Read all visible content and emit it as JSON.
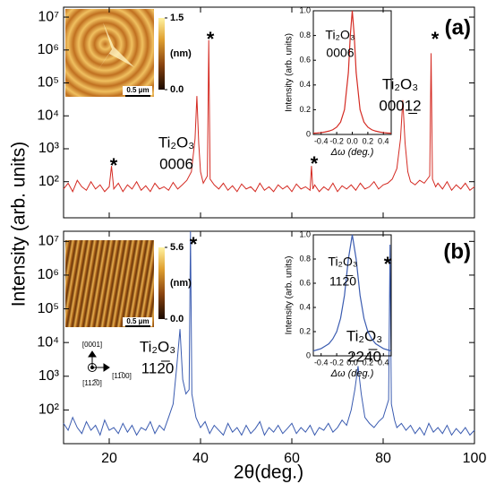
{
  "chart_data": [
    {
      "type": "line",
      "log_y": true,
      "color": "#d42a22",
      "panel_label": "(a)",
      "ylabel": "Intensity (arb. units)",
      "xlim": [
        10,
        100
      ],
      "xticks": [
        20,
        40,
        60,
        80,
        100
      ],
      "ylim": [
        8,
        20000000
      ],
      "yticks": [
        {
          "value": 100,
          "label": "10²"
        },
        {
          "value": 1000,
          "label": "10³"
        },
        {
          "value": 10000,
          "label": "10⁴"
        },
        {
          "value": 100000,
          "label": "10⁵"
        },
        {
          "value": 1000000,
          "label": "10⁶"
        },
        {
          "value": 10000000,
          "label": "10⁷"
        }
      ],
      "x": [
        10,
        11,
        12,
        13,
        14,
        15,
        16,
        17,
        18,
        19,
        20,
        20.5,
        21,
        22,
        23,
        24,
        25,
        26,
        27,
        28,
        29,
        30,
        31,
        32,
        33,
        34,
        35,
        36,
        37,
        38,
        38.8,
        39.2,
        39.6,
        40,
        40.6,
        41.5,
        41.8,
        42.1,
        43,
        44,
        45,
        46,
        47,
        48,
        49,
        50,
        51,
        52,
        53,
        54,
        55,
        56,
        57,
        58,
        59,
        60,
        61,
        62,
        63,
        64,
        64.3,
        64.6,
        65,
        66,
        67,
        68,
        69,
        70,
        71,
        72,
        73,
        74,
        75,
        76,
        77,
        78,
        79,
        80,
        81,
        82,
        83,
        83.8,
        84.3,
        84.8,
        85.4,
        86,
        87,
        88,
        89,
        90.2,
        90.5,
        90.8,
        91.5,
        92,
        93,
        94,
        95,
        96,
        97,
        98,
        99,
        100
      ],
      "values": [
        60,
        90,
        50,
        110,
        70,
        55,
        100,
        60,
        80,
        50,
        70,
        300,
        60,
        90,
        50,
        80,
        60,
        100,
        55,
        75,
        50,
        90,
        60,
        70,
        55,
        95,
        60,
        80,
        110,
        200,
        2000,
        40000,
        1500,
        200,
        90,
        150,
        2000000,
        120,
        80,
        60,
        90,
        55,
        75,
        50,
        85,
        60,
        70,
        50,
        90,
        55,
        70,
        50,
        80,
        60,
        75,
        50,
        85,
        60,
        70,
        55,
        300,
        60,
        80,
        50,
        70,
        55,
        90,
        50,
        75,
        60,
        80,
        55,
        90,
        60,
        70,
        100,
        60,
        80,
        90,
        120,
        250,
        2000,
        30000,
        1500,
        200,
        100,
        80,
        110,
        90,
        150,
        800000,
        120,
        70,
        90,
        60,
        100,
        55,
        80,
        60,
        90,
        55,
        70
      ],
      "annotations": [
        "*",
        "*",
        "*",
        "*",
        "Ti₂O₃",
        "0006",
        "Ti₂O₃",
        "0001̲2"
      ]
    },
    {
      "type": "line",
      "color": "#d42a22",
      "ylabel": "Intensity (arb. units)",
      "xlabel": "Δω (deg.)",
      "xlim": [
        -0.5,
        0.5
      ],
      "xticks": [
        -0.4,
        -0.2,
        {
          "value": 0,
          "label": "0.0"
        },
        0.2,
        0.4
      ],
      "ylim": [
        0,
        1
      ],
      "yticks": [
        0,
        0.2,
        0.4,
        0.6,
        0.8,
        {
          "value": 1,
          "label": "1.0"
        }
      ],
      "x": [
        -0.5,
        -0.45,
        -0.4,
        -0.35,
        -0.3,
        -0.25,
        -0.2,
        -0.15,
        -0.1,
        -0.05,
        -0.025,
        0,
        0.025,
        0.05,
        0.1,
        0.15,
        0.2,
        0.25,
        0.3,
        0.35,
        0.4,
        0.45,
        0.5
      ],
      "values": [
        0.01,
        0.012,
        0.015,
        0.02,
        0.027,
        0.038,
        0.059,
        0.1,
        0.2,
        0.5,
        0.8,
        1,
        0.8,
        0.5,
        0.2,
        0.1,
        0.059,
        0.038,
        0.027,
        0.02,
        0.015,
        0.012,
        0.01
      ],
      "annotations": [
        "Ti₂O₃",
        "0006"
      ]
    },
    {
      "type": "line",
      "log_y": true,
      "color": "#3a5bb0",
      "panel_label": "(b)",
      "xlabel": "2θ(deg.)",
      "xlim": [
        10,
        100
      ],
      "xticks": [
        20,
        40,
        60,
        80,
        100
      ],
      "ylim": [
        10,
        20000000
      ],
      "yticks": [
        {
          "value": 100,
          "label": "10²"
        },
        {
          "value": 1000,
          "label": "10³"
        },
        {
          "value": 10000,
          "label": "10⁴"
        },
        {
          "value": 100000,
          "label": "10⁵"
        },
        {
          "value": 1000000,
          "label": "10⁶"
        },
        {
          "value": 10000000,
          "label": "10⁷"
        }
      ],
      "x": [
        10,
        11,
        12,
        13,
        14,
        15,
        16,
        17,
        18,
        19,
        20,
        21,
        22,
        23,
        24,
        25,
        26,
        27,
        28,
        29,
        30,
        31,
        32,
        33,
        34,
        34.8,
        35.5,
        36.1,
        36.8,
        37.5,
        37.8,
        38.1,
        39,
        40,
        41,
        42,
        43,
        44,
        45,
        46,
        47,
        48,
        49,
        50,
        51,
        52,
        53,
        54,
        55,
        56,
        57,
        58,
        59,
        60,
        61,
        62,
        63,
        64,
        65,
        66,
        67,
        68,
        69,
        70,
        71,
        72,
        73,
        73.8,
        74.5,
        75.2,
        76,
        77,
        78,
        79,
        80,
        81.2,
        81.5,
        81.8,
        82.5,
        83,
        84,
        85,
        86,
        87,
        88,
        89,
        90,
        91,
        92,
        93,
        94,
        95,
        96,
        97,
        98,
        99,
        100
      ],
      "values": [
        40,
        25,
        60,
        30,
        20,
        45,
        25,
        35,
        18,
        50,
        25,
        30,
        20,
        40,
        22,
        35,
        18,
        30,
        25,
        45,
        20,
        35,
        25,
        60,
        150,
        2000,
        25000,
        800,
        300,
        400,
        20000000,
        300,
        60,
        30,
        45,
        20,
        35,
        25,
        18,
        40,
        22,
        30,
        18,
        35,
        20,
        28,
        45,
        18,
        30,
        22,
        35,
        20,
        28,
        40,
        20,
        30,
        22,
        35,
        18,
        30,
        25,
        40,
        22,
        30,
        50,
        35,
        100,
        400,
        2000,
        300,
        60,
        40,
        30,
        45,
        60,
        200,
        8000000,
        150,
        50,
        30,
        40,
        25,
        35,
        20,
        30,
        18,
        40,
        22,
        30,
        20,
        35,
        18,
        28,
        20,
        30,
        18,
        25
      ],
      "annotations": [
        "*",
        "*",
        "Ti₂O₃",
        "112̅0",
        "Ti₂O₃",
        "224̅0"
      ]
    },
    {
      "type": "line",
      "color": "#3a5bb0",
      "ylabel": "Intensity (arb. units)",
      "xlabel": "Δω (deg.)",
      "xlim": [
        -0.5,
        0.5
      ],
      "xticks": [
        -0.4,
        -0.2,
        {
          "value": 0,
          "label": "0.0"
        },
        0.2,
        0.4
      ],
      "ylim": [
        0,
        1
      ],
      "yticks": [
        0,
        0.2,
        0.4,
        0.6,
        0.8,
        {
          "value": 1,
          "label": "1.0"
        }
      ],
      "x": [
        -0.5,
        -0.45,
        -0.4,
        -0.35,
        -0.3,
        -0.25,
        -0.2,
        -0.15,
        -0.1,
        -0.05,
        0,
        0.05,
        0.1,
        0.15,
        0.2,
        0.25,
        0.3,
        0.35,
        0.4,
        0.45,
        0.5
      ],
      "values": [
        0.04,
        0.05,
        0.06,
        0.08,
        0.1,
        0.14,
        0.2,
        0.31,
        0.5,
        0.8,
        1,
        0.8,
        0.5,
        0.31,
        0.2,
        0.14,
        0.1,
        0.08,
        0.06,
        0.05,
        0.04
      ],
      "annotations": [
        "Ti₂O₃",
        "112̅0"
      ]
    }
  ],
  "afm_images": [
    {
      "colorbar_ticks": [
        1.5,
        {
          "value": 0,
          "label": "0.0"
        }
      ],
      "unit": "(nm)",
      "scale_bar": "0.5 μm"
    },
    {
      "colorbar_ticks": [
        5.6,
        {
          "value": 0,
          "label": "0.0"
        }
      ],
      "unit": "(nm)",
      "scale_bar": "0.5 μm"
    }
  ],
  "orientation": [
    "[0001]",
    "[112̅0]",
    "[11̅00]"
  ]
}
